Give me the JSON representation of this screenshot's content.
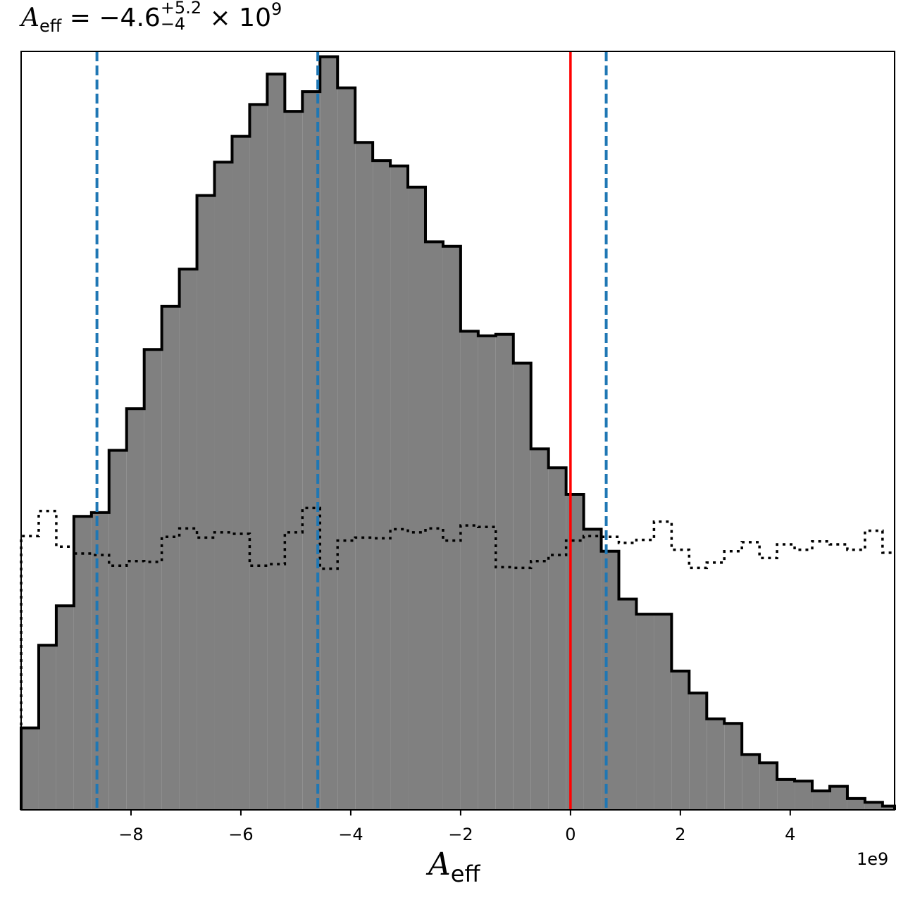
{
  "title": {
    "symbol": "A",
    "subscript": "eff",
    "equals": "=",
    "median": "−4.6",
    "upper_err": "+5.2",
    "lower_err": "−4",
    "times": "×",
    "base": "10",
    "exponent": "9"
  },
  "xlabel": {
    "symbol": "A",
    "subscript": "eff"
  },
  "offset_text": "1e9",
  "chart_data": {
    "type": "histogram",
    "xlim": [
      -10.0,
      5.9
    ],
    "x_scale_factor": "1e9",
    "xticks": [
      -8,
      -6,
      -4,
      -2,
      0,
      2,
      4
    ],
    "xtick_labels": [
      "−8",
      "−6",
      "−4",
      "−2",
      "0",
      "2",
      "4"
    ],
    "bin_edges": [
      -10.0,
      -9.68,
      -9.36,
      -9.04,
      -8.72,
      -8.4,
      -8.08,
      -7.76,
      -7.44,
      -7.12,
      -6.8,
      -6.48,
      -6.16,
      -5.84,
      -5.52,
      -5.2,
      -4.88,
      -4.56,
      -4.24,
      -3.92,
      -3.6,
      -3.28,
      -2.96,
      -2.64,
      -2.32,
      -2.0,
      -1.68,
      -1.36,
      -1.04,
      -0.72,
      -0.4,
      -0.08,
      0.24,
      0.56,
      0.88,
      1.2,
      1.52,
      1.84,
      2.16,
      2.48,
      2.8,
      3.12,
      3.44,
      3.76,
      4.08,
      4.4,
      4.72,
      5.04,
      5.36,
      5.68
    ],
    "posterior_counts": [
      0.108,
      0.217,
      0.269,
      0.387,
      0.392,
      0.474,
      0.529,
      0.607,
      0.664,
      0.713,
      0.81,
      0.854,
      0.888,
      0.93,
      0.97,
      0.921,
      0.947,
      0.993,
      0.952,
      0.88,
      0.856,
      0.849,
      0.821,
      0.749,
      0.743,
      0.631,
      0.625,
      0.627,
      0.589,
      0.476,
      0.451,
      0.416,
      0.37,
      0.341,
      0.278,
      0.258,
      0.258,
      0.183,
      0.154,
      0.12,
      0.114,
      0.073,
      0.062,
      0.04,
      0.038,
      0.025,
      0.031,
      0.015,
      0.01,
      0.005
    ],
    "prior_counts": [
      0.361,
      0.394,
      0.347,
      0.338,
      0.336,
      0.322,
      0.328,
      0.327,
      0.36,
      0.371,
      0.359,
      0.366,
      0.364,
      0.322,
      0.324,
      0.366,
      0.398,
      0.318,
      0.355,
      0.359,
      0.358,
      0.37,
      0.366,
      0.371,
      0.355,
      0.375,
      0.373,
      0.32,
      0.319,
      0.328,
      0.336,
      0.355,
      0.361,
      0.36,
      0.352,
      0.356,
      0.38,
      0.343,
      0.319,
      0.326,
      0.341,
      0.353,
      0.332,
      0.35,
      0.343,
      0.354,
      0.35,
      0.343,
      0.368,
      0.339
    ],
    "quantile_lines": [
      -8.62,
      -4.6,
      0.65
    ],
    "truth_line": 0.0,
    "colors": {
      "hist_fill": "#808080",
      "hist_edge": "#000000",
      "quantile": "#1f77b4",
      "truth": "#ff0000",
      "prior": "#000000"
    }
  }
}
